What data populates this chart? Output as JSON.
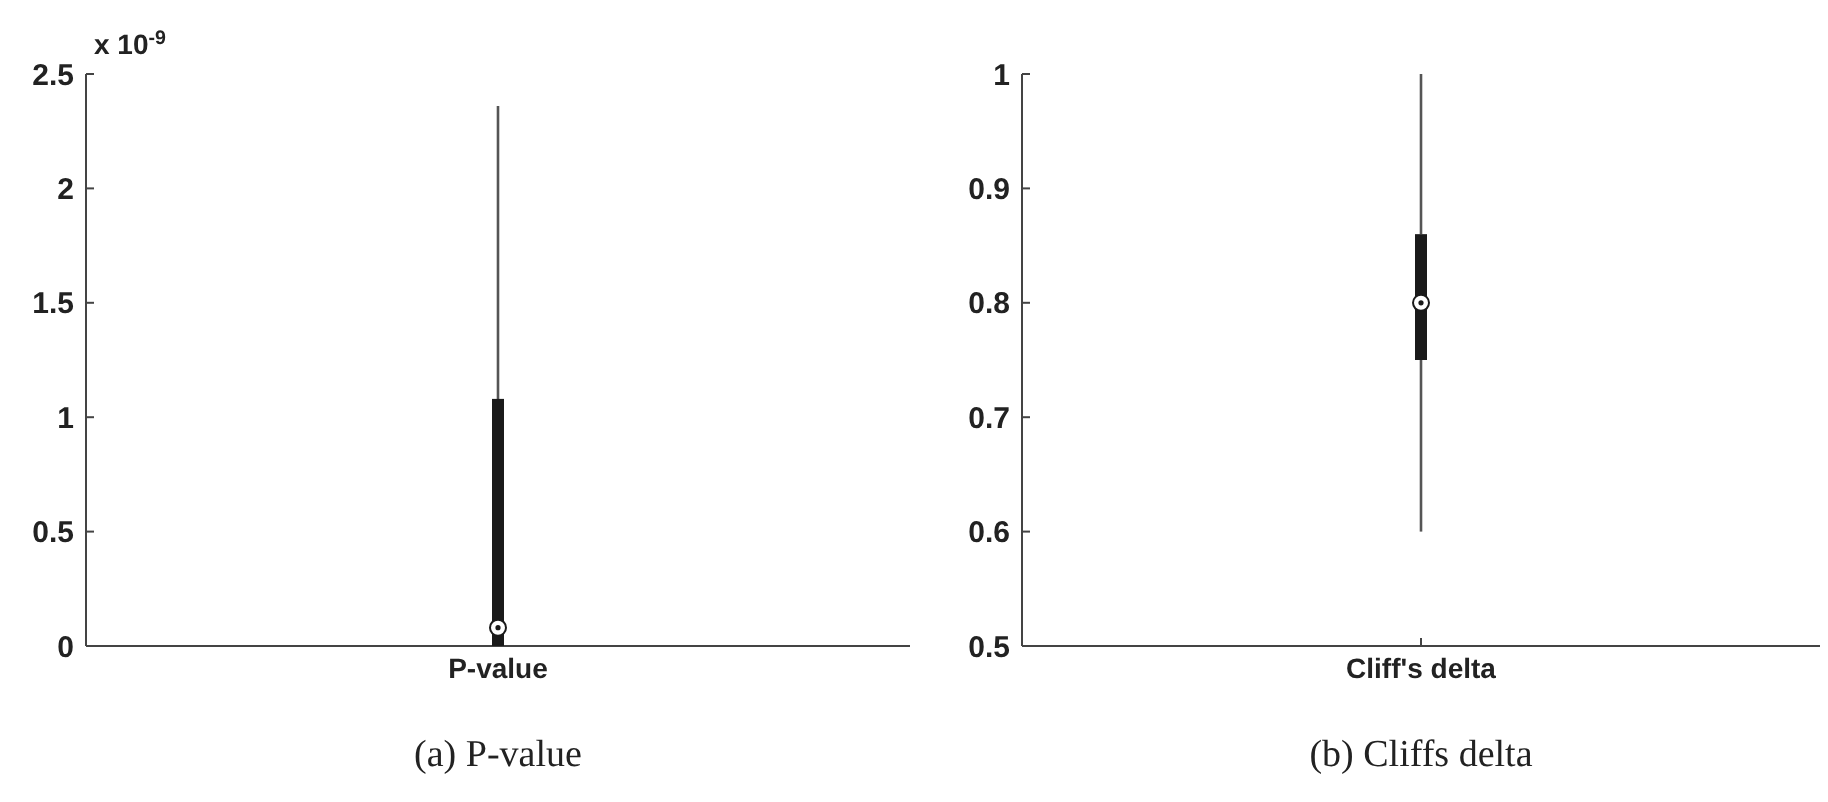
{
  "chart_data": [
    {
      "type": "box",
      "categories": [
        "P-value"
      ],
      "color": "#1a1a1a",
      "boxes": [
        {
          "low": 0,
          "q1": 0,
          "median": 0.08,
          "q3": 1.08,
          "high": 2.36
        }
      ],
      "ylim": [
        0,
        2.5
      ],
      "yticks": [
        0,
        0.5,
        1,
        1.5,
        2,
        2.5
      ],
      "annotations": [
        "x 10$^{-9}$",
        "(a) P-value"
      ]
    },
    {
      "type": "box",
      "categories": [
        "Cliff's delta"
      ],
      "color": "#1a1a1a",
      "boxes": [
        {
          "low": 0.6,
          "q1": 0.75,
          "median": 0.8,
          "q3": 0.86,
          "high": 1.0
        }
      ],
      "ylim": [
        0.5,
        1
      ],
      "yticks": [
        0.5,
        0.6,
        0.7,
        0.8,
        0.9,
        1
      ],
      "annotations": [
        "(b) Cliffs delta"
      ]
    }
  ]
}
